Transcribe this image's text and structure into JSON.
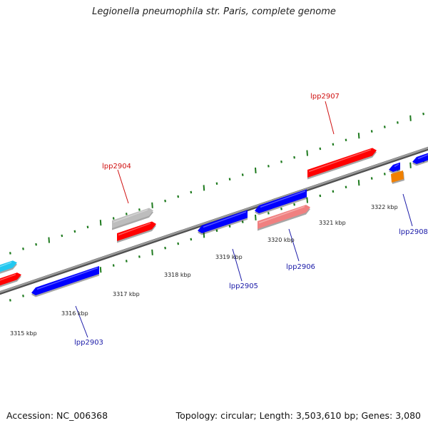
{
  "title": "Legionella pneumophila str. Paris, complete genome",
  "footer": {
    "accession": "Accession: NC_006368",
    "topology": "Topology: circular; Length: 3,503,610 bp; Genes: 3,080"
  },
  "colors": {
    "backbone": "#7a7a7a",
    "ticks": "#1e7a1e",
    "forward_label": "#d01010",
    "reverse_label": "#1a1aa8",
    "red": "#ff0000",
    "blue": "#0000ff",
    "gray": "#bdbdbd",
    "pink": "#f08080",
    "cyan": "#22c8f0",
    "orange": "#f08000"
  },
  "ruler_labels": [
    "3315 kbp",
    "3316 kbp",
    "3317 kbp",
    "3318 kbp",
    "3319 kbp",
    "3320 kbp",
    "3321 kbp",
    "3322 kbp"
  ],
  "gene_labels": {
    "forward": [
      "lpp2904",
      "lpp2907"
    ],
    "reverse": [
      "lpp2903",
      "lpp2905",
      "lpp2906",
      "lpp2908"
    ]
  }
}
